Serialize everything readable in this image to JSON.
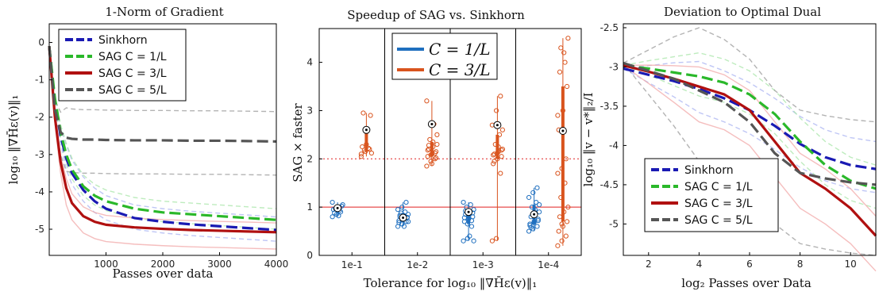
{
  "chart_data": [
    {
      "type": "line",
      "title": "1-Norm of Gradient",
      "xlabel": "Passes over data",
      "ylabel": "log₁₀ ‖∇H̄ε(v)‖₁",
      "xlim": [
        0,
        4000
      ],
      "ylim": [
        -5.7,
        0.5
      ],
      "xticks": [
        "1000",
        "2000",
        "3000",
        "4000"
      ],
      "yticks": [
        "0",
        "-1",
        "-2",
        "-3",
        "-4",
        "-5"
      ],
      "legend_position": "top-right",
      "series": [
        {
          "name": "Sinkhorn",
          "color": "#1a1ab3",
          "style": "dash",
          "x": [
            0,
            100,
            200,
            300,
            400,
            600,
            800,
            1000,
            1500,
            2000,
            2500,
            3000,
            3500,
            4000
          ],
          "y": [
            -0.1,
            -1.6,
            -2.5,
            -3.1,
            -3.5,
            -3.95,
            -4.25,
            -4.45,
            -4.7,
            -4.8,
            -4.87,
            -4.92,
            -4.97,
            -5.02
          ]
        },
        {
          "name": "SAG C = 1/L",
          "color": "#2ab82a",
          "style": "dash",
          "x": [
            0,
            100,
            200,
            300,
            400,
            600,
            800,
            1000,
            1500,
            2000,
            2500,
            3000,
            3500,
            4000
          ],
          "y": [
            -0.1,
            -1.5,
            -2.4,
            -3.0,
            -3.4,
            -3.85,
            -4.1,
            -4.25,
            -4.45,
            -4.55,
            -4.6,
            -4.65,
            -4.7,
            -4.75
          ]
        },
        {
          "name": "SAG C = 3/L",
          "color": "#b01010",
          "style": "solid",
          "x": [
            0,
            100,
            200,
            300,
            400,
            600,
            800,
            1000,
            1500,
            2000,
            2500,
            3000,
            3500,
            4000
          ],
          "y": [
            -0.1,
            -2.0,
            -3.2,
            -3.9,
            -4.3,
            -4.65,
            -4.8,
            -4.88,
            -4.95,
            -4.99,
            -5.02,
            -5.04,
            -5.06,
            -5.08
          ]
        },
        {
          "name": "SAG C = 5/L",
          "color": "#555555",
          "style": "dash",
          "x": [
            0,
            100,
            200,
            300,
            400,
            600,
            800,
            1000,
            1500,
            2000,
            2500,
            3000,
            3500,
            4000
          ],
          "y": [
            -0.1,
            -1.8,
            -2.4,
            -2.55,
            -2.58,
            -2.6,
            -2.6,
            -2.61,
            -2.62,
            -2.62,
            -2.63,
            -2.63,
            -2.64,
            -2.65
          ]
        }
      ]
    },
    {
      "type": "scatter",
      "title": "Speedup of SAG vs. Sinkhorn",
      "xlabel": "Tolerance for log₁₀ ‖∇H̄ε(v)‖₁",
      "ylabel": "SAG × faster",
      "ylim": [
        0,
        4.7
      ],
      "categories": [
        "1e-1",
        "1e-2",
        "1e-3",
        "1e-4"
      ],
      "yticks": [
        "0",
        "1",
        "2",
        "3",
        "4"
      ],
      "legend_position": "top-left",
      "series": [
        {
          "name": "C = 1/L",
          "color": "#1f6fbf",
          "medians": [
            0.98,
            0.78,
            0.9,
            0.85
          ],
          "points": [
            [
              0.8,
              0.85,
              0.9,
              0.95,
              1.0,
              1.02,
              0.88,
              0.82,
              1.05,
              0.97,
              0.93,
              1.1
            ],
            [
              0.6,
              0.65,
              0.7,
              0.72,
              0.75,
              0.78,
              0.8,
              0.82,
              0.85,
              0.88,
              0.9,
              0.95,
              1.0,
              1.1,
              0.68,
              0.74,
              0.79,
              0.83,
              0.6,
              0.7
            ],
            [
              0.3,
              0.35,
              0.6,
              0.7,
              0.75,
              0.8,
              0.85,
              0.9,
              0.95,
              1.0,
              1.05,
              1.1,
              0.65,
              0.72,
              0.78,
              0.82,
              0.88,
              0.92,
              0.4,
              0.3
            ],
            [
              0.5,
              0.55,
              0.6,
              0.65,
              0.7,
              0.75,
              0.8,
              0.85,
              0.9,
              1.0,
              1.1,
              1.2,
              1.3,
              1.4,
              0.62,
              0.68,
              0.72,
              0.58,
              0.95,
              1.05
            ]
          ]
        },
        {
          "name": "C = 3/L",
          "color": "#d9541e",
          "medians": [
            2.6,
            2.72,
            2.7,
            2.58
          ],
          "points": [
            [
              2.1,
              2.15,
              2.2,
              2.25,
              2.3,
              2.9,
              2.95,
              2.6,
              2.12,
              2.18,
              2.22,
              2.05
            ],
            [
              1.85,
              1.95,
              2.0,
              2.05,
              2.1,
              2.15,
              2.2,
              2.25,
              2.3,
              2.4,
              2.72,
              3.2,
              2.08,
              2.12,
              2.18,
              1.9,
              2.02,
              2.28,
              2.35,
              2.5
            ],
            [
              0.3,
              0.35,
              1.7,
              1.9,
              2.0,
              2.05,
              2.1,
              2.15,
              2.2,
              2.3,
              2.5,
              2.7,
              3.0,
              3.3,
              2.08,
              2.12,
              2.18,
              1.95,
              2.25,
              2.6
            ],
            [
              0.2,
              0.3,
              0.4,
              0.5,
              0.6,
              0.7,
              0.8,
              0.9,
              1.0,
              1.2,
              1.5,
              1.7,
              1.8,
              2.0,
              2.6,
              3.0,
              3.5,
              3.8,
              4.2,
              4.5,
              4.3,
              4.0,
              2.9,
              0.65
            ]
          ]
        }
      ],
      "reference_lines": [
        {
          "y": 1,
          "color": "#e02020",
          "style": "solid"
        },
        {
          "y": 2,
          "color": "#e02020",
          "style": "dotted"
        }
      ]
    },
    {
      "type": "line",
      "title": "Deviation to Optimal Dual",
      "xlabel": "log₂ Passes over Data",
      "ylabel": "log₁₀ ‖v − v*‖₂/I",
      "xlim": [
        1,
        11
      ],
      "ylim": [
        -5.4,
        -2.45
      ],
      "xticks": [
        "2",
        "4",
        "6",
        "8",
        "10"
      ],
      "yticks": [
        "-2.5",
        "-3",
        "-3.5",
        "-4",
        "-4.5",
        "-5"
      ],
      "legend_position": "bottom-left",
      "series": [
        {
          "name": "Sinkhorn",
          "color": "#1a1ab3",
          "style": "dash",
          "x": [
            1,
            2,
            3,
            4,
            5,
            6,
            7,
            8,
            9,
            10,
            11
          ],
          "y": [
            -3.02,
            -3.1,
            -3.18,
            -3.28,
            -3.4,
            -3.55,
            -3.75,
            -3.98,
            -4.15,
            -4.25,
            -4.3
          ]
        },
        {
          "name": "SAG C = 1/L",
          "color": "#2ab82a",
          "style": "dash",
          "x": [
            1,
            2,
            3,
            4,
            5,
            6,
            7,
            8,
            9,
            10,
            11
          ],
          "y": [
            -2.98,
            -3.02,
            -3.07,
            -3.12,
            -3.2,
            -3.35,
            -3.6,
            -3.95,
            -4.25,
            -4.45,
            -4.55
          ]
        },
        {
          "name": "SAG C = 3/L",
          "color": "#b01010",
          "style": "solid",
          "x": [
            1,
            2,
            3,
            4,
            5,
            6,
            7,
            8,
            9,
            10,
            11
          ],
          "y": [
            -2.98,
            -3.06,
            -3.15,
            -3.25,
            -3.35,
            -3.55,
            -3.95,
            -4.35,
            -4.55,
            -4.8,
            -5.15
          ]
        },
        {
          "name": "SAG C = 5/L",
          "color": "#555555",
          "style": "dash",
          "x": [
            1,
            2,
            3,
            4,
            5,
            6,
            7,
            8,
            9,
            10,
            11
          ],
          "y": [
            -2.95,
            -3.05,
            -3.15,
            -3.3,
            -3.45,
            -3.7,
            -4.1,
            -4.35,
            -4.42,
            -4.47,
            -4.5
          ]
        }
      ]
    }
  ]
}
